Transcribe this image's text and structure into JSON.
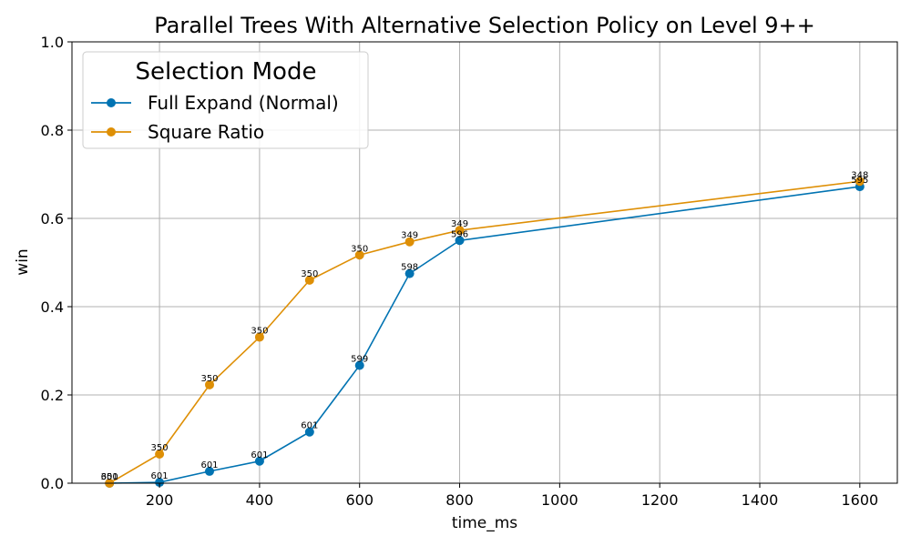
{
  "chart_data": {
    "type": "line",
    "title": "Parallel Trees With Alternative Selection Policy on Level 9++",
    "xlabel": "time_ms",
    "ylabel": "win",
    "xlim": [
      25,
      1675
    ],
    "ylim": [
      0,
      1
    ],
    "xticks": [
      200,
      400,
      600,
      800,
      1000,
      1200,
      1400,
      1600
    ],
    "yticks": [
      0.0,
      0.2,
      0.4,
      0.6,
      0.8,
      1.0
    ],
    "xtick_labels": [
      "200",
      "400",
      "600",
      "800",
      "1000",
      "1200",
      "1400",
      "1600"
    ],
    "ytick_labels": [
      "0.0",
      "0.2",
      "0.4",
      "0.6",
      "0.8",
      "1.0"
    ],
    "grid": true,
    "legend": {
      "title": "Selection Mode",
      "placement": "top-left"
    },
    "series": [
      {
        "name": "Full Expand (Normal)",
        "color": "#0173b2",
        "x": [
          100,
          200,
          300,
          400,
          500,
          600,
          700,
          800,
          1600
        ],
        "y": [
          0.0,
          0.002,
          0.027,
          0.05,
          0.116,
          0.267,
          0.475,
          0.55,
          0.672
        ],
        "labels": [
          "601",
          "601",
          "601",
          "601",
          "601",
          "599",
          "598",
          "596",
          "595"
        ]
      },
      {
        "name": "Square Ratio",
        "color": "#de8f05",
        "x": [
          100,
          200,
          300,
          400,
          500,
          600,
          700,
          800,
          1600
        ],
        "y": [
          0.0,
          0.066,
          0.223,
          0.331,
          0.46,
          0.517,
          0.547,
          0.573,
          0.684
        ],
        "labels": [
          "350",
          "350",
          "350",
          "350",
          "350",
          "350",
          "349",
          "349",
          "348"
        ]
      }
    ]
  }
}
